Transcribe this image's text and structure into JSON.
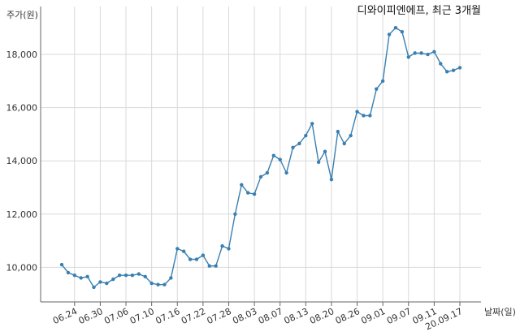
{
  "chart_data": {
    "type": "line",
    "title": "디와이피엔에프, 최근 3개월",
    "ylabel": "주가(원)",
    "xlabel": "날짜(일)",
    "ylim": [
      8700,
      19800
    ],
    "yticks": [
      10000,
      12000,
      14000,
      16000,
      18000
    ],
    "ytick_labels": [
      "10,000",
      "12,000",
      "14,000",
      "16,000",
      "18,000"
    ],
    "xticks": [
      {
        "index": 2,
        "label": "06.24"
      },
      {
        "index": 6,
        "label": "06.30"
      },
      {
        "index": 10,
        "label": "07.06"
      },
      {
        "index": 14,
        "label": "07.10"
      },
      {
        "index": 18,
        "label": "07.16"
      },
      {
        "index": 22,
        "label": "07.22"
      },
      {
        "index": 26,
        "label": "07.28"
      },
      {
        "index": 30,
        "label": "08.03"
      },
      {
        "index": 34,
        "label": "08.07"
      },
      {
        "index": 38,
        "label": "08.13"
      },
      {
        "index": 42,
        "label": "08.20"
      },
      {
        "index": 46,
        "label": "08.26"
      },
      {
        "index": 50,
        "label": "09.01"
      },
      {
        "index": 54,
        "label": "09.07"
      },
      {
        "index": 58,
        "label": "09.11"
      },
      {
        "index": 62,
        "label": "20.09.17"
      }
    ],
    "grid": true,
    "color": "#3a7fb1",
    "series": [
      {
        "values": [
          10100,
          9800,
          9700,
          9600,
          9650,
          9250,
          9450,
          9400,
          9550,
          9700,
          9700,
          9700,
          9750,
          9650,
          9400,
          9350,
          9350,
          9600,
          10700,
          10600,
          10300,
          10300,
          10450,
          10050,
          10050,
          10800,
          10700,
          12000,
          13100,
          12800,
          12750,
          13400,
          13550,
          14200,
          14050,
          13550,
          14500,
          14650,
          14950,
          15400,
          13950,
          14350,
          13300,
          15100,
          14650,
          14950,
          15850,
          15700,
          15700,
          16700,
          17000,
          18750,
          19000,
          18850,
          17900,
          18050,
          18050,
          18000,
          18100,
          17650,
          17350,
          17400,
          17500
        ]
      }
    ]
  }
}
